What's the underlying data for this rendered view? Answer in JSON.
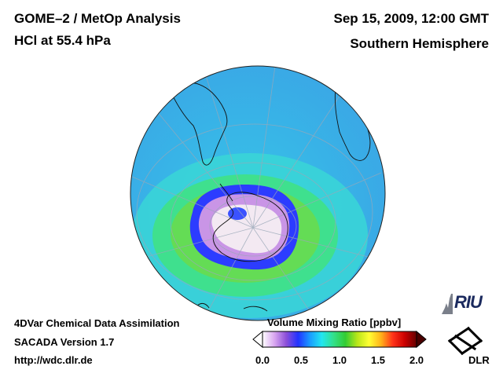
{
  "header": {
    "instrument": "GOME–2 / MetOp Analysis",
    "species": "HCl at 55.4 hPa",
    "datetime": "Sep 15, 2009, 12:00 GMT",
    "region": "Southern Hemisphere"
  },
  "footer": {
    "line1": "4DVar Chemical Data Assimilation",
    "line2": "SACADA Version 1.7",
    "url": "http://wdc.dlr.de"
  },
  "colorbar": {
    "title": "Volume Mixing Ratio [ppbv]",
    "ticks": [
      "0.0",
      "0.5",
      "1.0",
      "1.5",
      "2.0"
    ],
    "colors": [
      "#ffffff",
      "#d9a7f0",
      "#8c4fd8",
      "#2233ff",
      "#1a9cff",
      "#22e6f0",
      "#33e08a",
      "#33cc33",
      "#b8e619",
      "#ffff33",
      "#ffb319",
      "#ff3319",
      "#cc0000",
      "#660000"
    ]
  },
  "logos": {
    "institute": "RIU",
    "agency": "DLR"
  },
  "map": {
    "projection": "orthographic, south polar view",
    "field_colors": {
      "outer": "#36c4e8",
      "mid": "#35e2b2",
      "ring": "#5ed85a",
      "vortex_edge": "#2c3cff",
      "vortex_inner": "#c896e6",
      "core": "#f4e8f0"
    }
  }
}
